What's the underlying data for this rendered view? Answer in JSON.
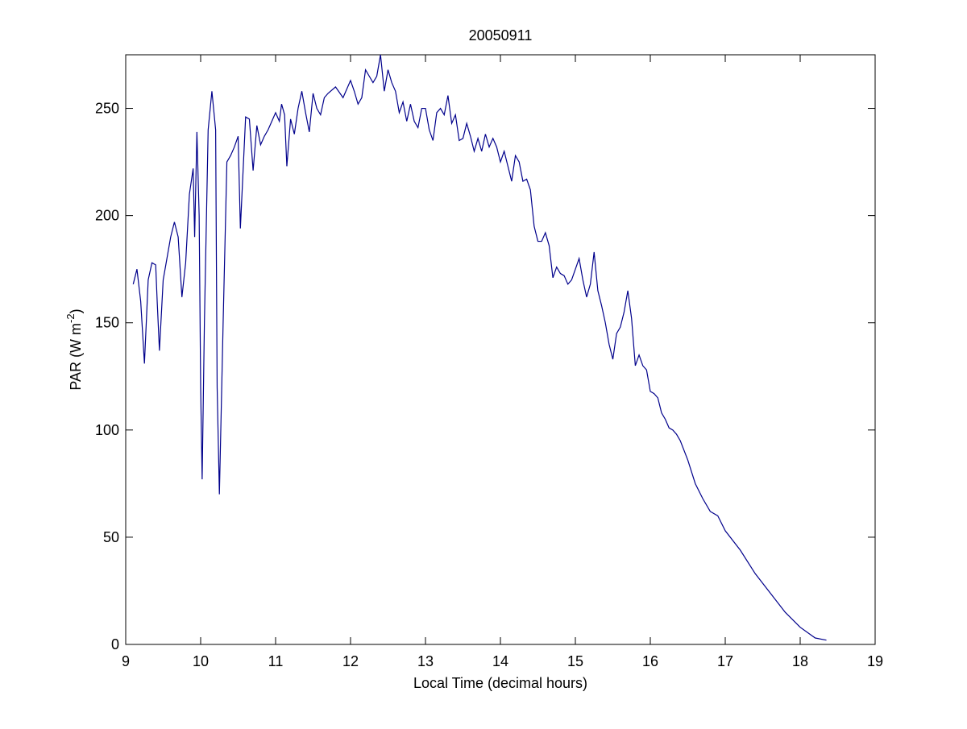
{
  "chart_data": {
    "type": "line",
    "title": "20050911",
    "xlabel": "Local Time (decimal hours)",
    "ylabel": {
      "text": "PAR (W m",
      "superscript": "-2",
      "suffix": ")"
    },
    "xlim": [
      9,
      19
    ],
    "ylim": [
      0,
      275
    ],
    "xticks": [
      9,
      10,
      11,
      12,
      13,
      14,
      15,
      16,
      17,
      18,
      19
    ],
    "yticks": [
      0,
      50,
      100,
      150,
      200,
      250
    ],
    "x": [
      9.1,
      9.15,
      9.2,
      9.25,
      9.3,
      9.35,
      9.4,
      9.42,
      9.45,
      9.5,
      9.55,
      9.6,
      9.65,
      9.7,
      9.75,
      9.8,
      9.85,
      9.9,
      9.92,
      9.95,
      9.98,
      10.0,
      10.02,
      10.05,
      10.1,
      10.15,
      10.2,
      10.22,
      10.25,
      10.3,
      10.35,
      10.4,
      10.45,
      10.5,
      10.53,
      10.6,
      10.65,
      10.7,
      10.75,
      10.8,
      10.85,
      10.9,
      10.95,
      11.0,
      11.05,
      11.08,
      11.12,
      11.15,
      11.2,
      11.25,
      11.3,
      11.35,
      11.4,
      11.45,
      11.5,
      11.55,
      11.6,
      11.65,
      11.7,
      11.8,
      11.9,
      12.0,
      12.05,
      12.1,
      12.15,
      12.2,
      12.25,
      12.3,
      12.35,
      12.4,
      12.45,
      12.5,
      12.55,
      12.6,
      12.65,
      12.7,
      12.75,
      12.8,
      12.85,
      12.9,
      12.95,
      13.0,
      13.05,
      13.1,
      13.15,
      13.2,
      13.25,
      13.3,
      13.35,
      13.4,
      13.45,
      13.5,
      13.55,
      13.6,
      13.65,
      13.7,
      13.75,
      13.8,
      13.85,
      13.9,
      13.95,
      14.0,
      14.05,
      14.1,
      14.15,
      14.2,
      14.25,
      14.3,
      14.35,
      14.4,
      14.45,
      14.5,
      14.55,
      14.6,
      14.65,
      14.7,
      14.75,
      14.8,
      14.85,
      14.9,
      14.95,
      15.0,
      15.05,
      15.1,
      15.15,
      15.2,
      15.25,
      15.3,
      15.35,
      15.4,
      15.45,
      15.5,
      15.55,
      15.6,
      15.65,
      15.7,
      15.75,
      15.8,
      15.85,
      15.9,
      15.95,
      16.0,
      16.05,
      16.1,
      16.15,
      16.2,
      16.25,
      16.3,
      16.35,
      16.4,
      16.5,
      16.6,
      16.7,
      16.8,
      16.9,
      17.0,
      17.2,
      17.4,
      17.6,
      17.8,
      18.0,
      18.2,
      18.35
    ],
    "series": [
      {
        "color": "#00008b",
        "values": [
          168,
          175,
          160,
          131,
          170,
          178,
          177,
          160,
          137,
          170,
          180,
          190,
          197,
          190,
          162,
          178,
          210,
          222,
          190,
          239,
          200,
          120,
          77,
          150,
          240,
          258,
          240,
          120,
          70,
          150,
          225,
          228,
          232,
          237,
          194,
          246,
          245,
          221,
          242,
          233,
          237,
          240,
          244,
          248,
          244,
          252,
          247,
          223,
          245,
          238,
          250,
          258,
          248,
          239,
          257,
          250,
          247,
          255,
          257,
          260,
          255,
          263,
          258,
          252,
          255,
          268,
          265,
          262,
          265,
          275,
          258,
          268,
          262,
          258,
          248,
          253,
          244,
          252,
          244,
          241,
          250,
          250,
          240,
          235,
          248,
          250,
          247,
          256,
          243,
          247,
          235,
          236,
          243,
          237,
          230,
          236,
          230,
          238,
          232,
          236,
          232,
          225,
          230,
          223,
          216,
          228,
          225,
          216,
          217,
          212,
          195,
          188,
          188,
          192,
          186,
          171,
          176,
          173,
          172,
          168,
          170,
          175,
          180,
          170,
          162,
          168,
          183,
          165,
          158,
          150,
          140,
          133,
          145,
          148,
          155,
          165,
          152,
          130,
          135,
          130,
          128,
          118,
          117,
          115,
          108,
          105,
          101,
          100,
          98,
          95,
          86,
          75,
          68,
          62,
          60,
          53,
          44,
          33,
          24,
          15,
          8,
          3,
          2
        ]
      }
    ]
  }
}
